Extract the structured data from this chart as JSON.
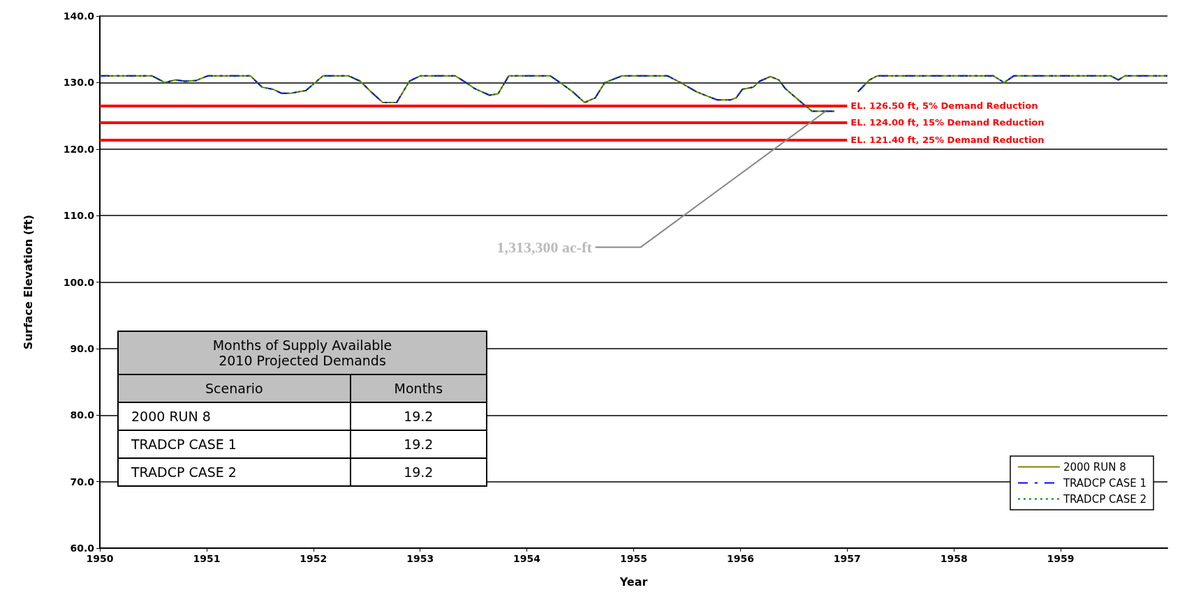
{
  "chart_data": [
    {
      "type": "line",
      "xlabel": "Year",
      "ylabel": "Surface Elevation (ft)",
      "xlim": [
        1950,
        1960
      ],
      "xticks": [
        1950,
        1951,
        1952,
        1953,
        1954,
        1955,
        1956,
        1957,
        1958,
        1959
      ],
      "ylim": [
        60,
        140
      ],
      "yticks": [
        {
          "value": 60,
          "label": "60.0"
        },
        {
          "value": 70,
          "label": "70.0"
        },
        {
          "value": 80,
          "label": "80.0"
        },
        {
          "value": 90,
          "label": "90.0"
        },
        {
          "value": 100,
          "label": "100.0"
        },
        {
          "value": 110,
          "label": "110.0"
        },
        {
          "value": 120,
          "label": "120.0"
        },
        {
          "value": 130,
          "label": "130.0"
        },
        {
          "value": 140,
          "label": "140.0"
        }
      ],
      "x": [
        1950,
        1950.49,
        1950.61,
        1950.71,
        1950.8,
        1950.9,
        1951.01,
        1951.41,
        1951.52,
        1951.62,
        1951.7,
        1951.79,
        1951.93,
        1952.09,
        1952.33,
        1952.44,
        1952.54,
        1952.65,
        1952.78,
        1952.9,
        1953.0,
        1953.33,
        1953.43,
        1953.51,
        1953.65,
        1953.73,
        1953.83,
        1954.22,
        1954.32,
        1954.43,
        1954.54,
        1954.64,
        1954.73,
        1954.89,
        1955.32,
        1955.45,
        1955.59,
        1955.78,
        1955.91,
        1955.96,
        1956.02,
        1956.12,
        1956.18,
        1956.28,
        1956.36,
        1956.42,
        1956.55,
        1956.67,
        1956.88,
        1957.0,
        1957.1,
        1957.21,
        1957.28,
        1958.37,
        1958.47,
        1958.56,
        1959.47,
        1959.54,
        1959.6,
        1960
      ],
      "series": [
        {
          "name": "2000 RUN 8",
          "color": "#808000",
          "line_style": "solid",
          "values": [
            131,
            131,
            130,
            130.4,
            130.2,
            130.3,
            131,
            131,
            129.3,
            129,
            128.4,
            128.4,
            128.8,
            131,
            131,
            130.2,
            128.6,
            127,
            127,
            130.2,
            131,
            131,
            130,
            129.1,
            128.1,
            128.3,
            131,
            131,
            129.9,
            128.6,
            127,
            127.7,
            130,
            131,
            131,
            129.9,
            128.6,
            127.4,
            127.4,
            127.7,
            129,
            129.3,
            130.2,
            130.9,
            130.4,
            129.1,
            127.3,
            125.7,
            125.7,
            null,
            128.6,
            130.4,
            131,
            131,
            130,
            131,
            131,
            130.4,
            131,
            131
          ]
        },
        {
          "name": "TRADCP CASE 1",
          "color": "#0000ff",
          "line_style": "dashed",
          "values": [
            131,
            131,
            130,
            130.4,
            130.2,
            130.3,
            131,
            131,
            129.3,
            129,
            128.4,
            128.4,
            128.8,
            131,
            131,
            130.2,
            128.6,
            127,
            127,
            130.2,
            131,
            131,
            130,
            129.1,
            128.1,
            128.3,
            131,
            131,
            129.9,
            128.6,
            127,
            127.7,
            130,
            131,
            131,
            129.9,
            128.6,
            127.4,
            127.4,
            127.7,
            129,
            129.3,
            130.2,
            130.9,
            130.4,
            129.1,
            127.3,
            125.7,
            125.7,
            null,
            128.6,
            130.4,
            131,
            131,
            130,
            131,
            131,
            130.4,
            131,
            131
          ]
        },
        {
          "name": "TRADCP CASE 2",
          "color": "#008000",
          "line_style": "dashed",
          "values": [
            131,
            131,
            130,
            130.4,
            130.2,
            130.3,
            131,
            131,
            129.3,
            129,
            128.4,
            128.4,
            128.8,
            131,
            131,
            130.2,
            128.6,
            127,
            127,
            130.2,
            131,
            131,
            130,
            129.1,
            128.1,
            128.3,
            131,
            131,
            129.9,
            128.6,
            127,
            127.7,
            130,
            131,
            131,
            129.9,
            128.6,
            127.4,
            127.4,
            127.7,
            129,
            129.3,
            130.2,
            130.9,
            130.4,
            129.1,
            127.3,
            125.7,
            125.7,
            null,
            128.6,
            130.4,
            131,
            131,
            130,
            131,
            131,
            130.4,
            131,
            131
          ]
        }
      ],
      "ref_lines": [
        {
          "axis": "y",
          "value": 126.5,
          "label": "EL. 126.50 ft, 5% Demand Reduction",
          "color": "#ff0000"
        },
        {
          "axis": "y",
          "value": 124,
          "label": "EL. 124.00 ft, 15% Demand Reduction",
          "color": "#ff0000"
        },
        {
          "axis": "y",
          "value": 121.4,
          "label": "EL. 121.40 ft, 25% Demand Reduction",
          "color": "#ff0000"
        }
      ],
      "annotations": [
        {
          "text": "1,313,300 ac-ft",
          "x": 1956.8,
          "y": 125.7
        }
      ],
      "grid": "y",
      "legend": "bottom right",
      "marker": "none"
    },
    {
      "type": "other",
      "title": "Months of Supply Available\n2010 Projected Demands",
      "xlabel": "Scenario",
      "ylabel": "Months",
      "categories": [
        "2000 RUN 8",
        "TRADCP CASE 1",
        "TRADCP CASE 2"
      ],
      "values": [
        19.2,
        19.2,
        19.2
      ],
      "data_labels": true
    }
  ]
}
